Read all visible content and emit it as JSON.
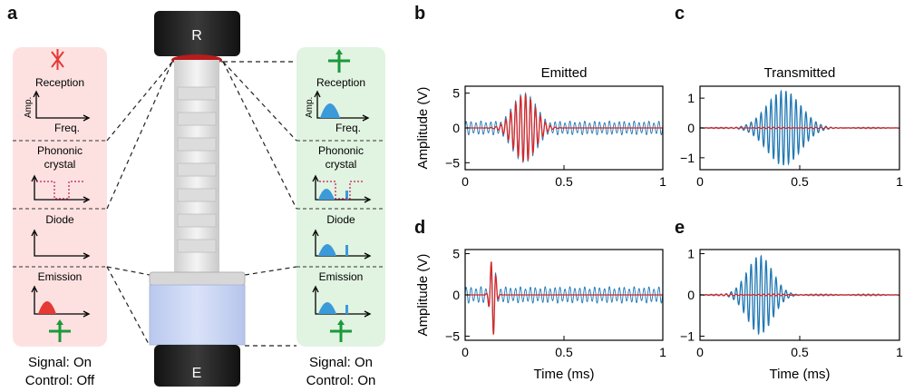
{
  "panel_labels": {
    "a": "a",
    "b": "b",
    "c": "c",
    "d": "d",
    "e": "e"
  },
  "colors": {
    "blue": "#1f77b4",
    "red": "#d62728",
    "pink_bg": "#fde1e1",
    "green_bg": "#e1f3e1",
    "green": "#1a9a3a"
  },
  "diagram": {
    "top_cap": "R",
    "bottom_cap": "E",
    "left": {
      "stages": {
        "reception": "Reception",
        "pc_line1": "Phononic",
        "pc_line2": "crystal",
        "diode": "Diode",
        "emission": "Emission"
      },
      "axis_amp": "Amp.",
      "axis_freq": "Freq.",
      "status_signal": "Signal: On",
      "status_control": "Control: Off"
    },
    "right": {
      "stages": {
        "reception": "Reception",
        "pc_line1": "Phononic",
        "pc_line2": "crystal",
        "diode": "Diode",
        "emission": "Emission"
      },
      "axis_amp": "Amp.",
      "axis_freq": "Freq.",
      "status_signal": "Signal: On",
      "status_control": "Control: On"
    }
  },
  "chart_data": [
    {
      "panel": "b",
      "type": "line",
      "title": "Emitted",
      "xlabel": "",
      "ylabel": "Amplitude (V)",
      "xlim": [
        0,
        1
      ],
      "ylim": [
        -6,
        6
      ],
      "xticks": [
        "0",
        "0.5",
        "1"
      ],
      "yticks": [
        "-5",
        "0",
        "5"
      ],
      "series": [
        {
          "color": "#1f77b4",
          "kind": "noise",
          "amplitude": 1.0,
          "burst_center": 0.3,
          "burst_width": 0.09,
          "burst_amplitude": 5.0,
          "freq_khz": 40
        },
        {
          "color": "#d62728",
          "kind": "burst",
          "center": 0.3,
          "width": 0.08,
          "amplitude": 4.8,
          "freq_khz": 40
        }
      ]
    },
    {
      "panel": "c",
      "type": "line",
      "title": "Transmitted",
      "xlabel": "",
      "ylabel": "",
      "xlim": [
        0,
        1
      ],
      "ylim": [
        -1.4,
        1.4
      ],
      "xticks": [
        "0",
        "0.5",
        "1"
      ],
      "yticks": [
        "-1",
        "0",
        "1"
      ],
      "series": [
        {
          "color": "#1f77b4",
          "kind": "burst",
          "center": 0.42,
          "width": 0.12,
          "amplitude": 1.25,
          "freq_khz": 40
        },
        {
          "color": "#d62728",
          "kind": "flat",
          "amplitude": 0.02
        }
      ]
    },
    {
      "panel": "d",
      "type": "line",
      "title": "",
      "xlabel": "Time (ms)",
      "ylabel": "Amplitude (V)",
      "xlim": [
        0,
        1
      ],
      "ylim": [
        -5.5,
        5.5
      ],
      "xticks": [
        "0",
        "0.5",
        "1"
      ],
      "yticks": [
        "-5",
        "0",
        "5"
      ],
      "series": [
        {
          "color": "#1f77b4",
          "kind": "noise",
          "amplitude": 1.0,
          "burst_center": 0.14,
          "burst_width": 0.02,
          "burst_amplitude": 4.5,
          "freq_khz": 40
        },
        {
          "color": "#d62728",
          "kind": "burst",
          "center": 0.14,
          "width": 0.018,
          "amplitude": 5.0,
          "freq_khz": 40
        }
      ]
    },
    {
      "panel": "e",
      "type": "line",
      "title": "",
      "xlabel": "Time (ms)",
      "ylabel": "",
      "xlim": [
        0,
        1
      ],
      "ylim": [
        -1.1,
        1.1
      ],
      "xticks": [
        "0",
        "0.5",
        "1"
      ],
      "yticks": [
        "-1",
        "0",
        "1"
      ],
      "series": [
        {
          "color": "#1f77b4",
          "kind": "burst",
          "center": 0.3,
          "width": 0.09,
          "amplitude": 0.95,
          "freq_khz": 40
        },
        {
          "color": "#d62728",
          "kind": "flat",
          "amplitude": 0.02
        }
      ]
    }
  ]
}
